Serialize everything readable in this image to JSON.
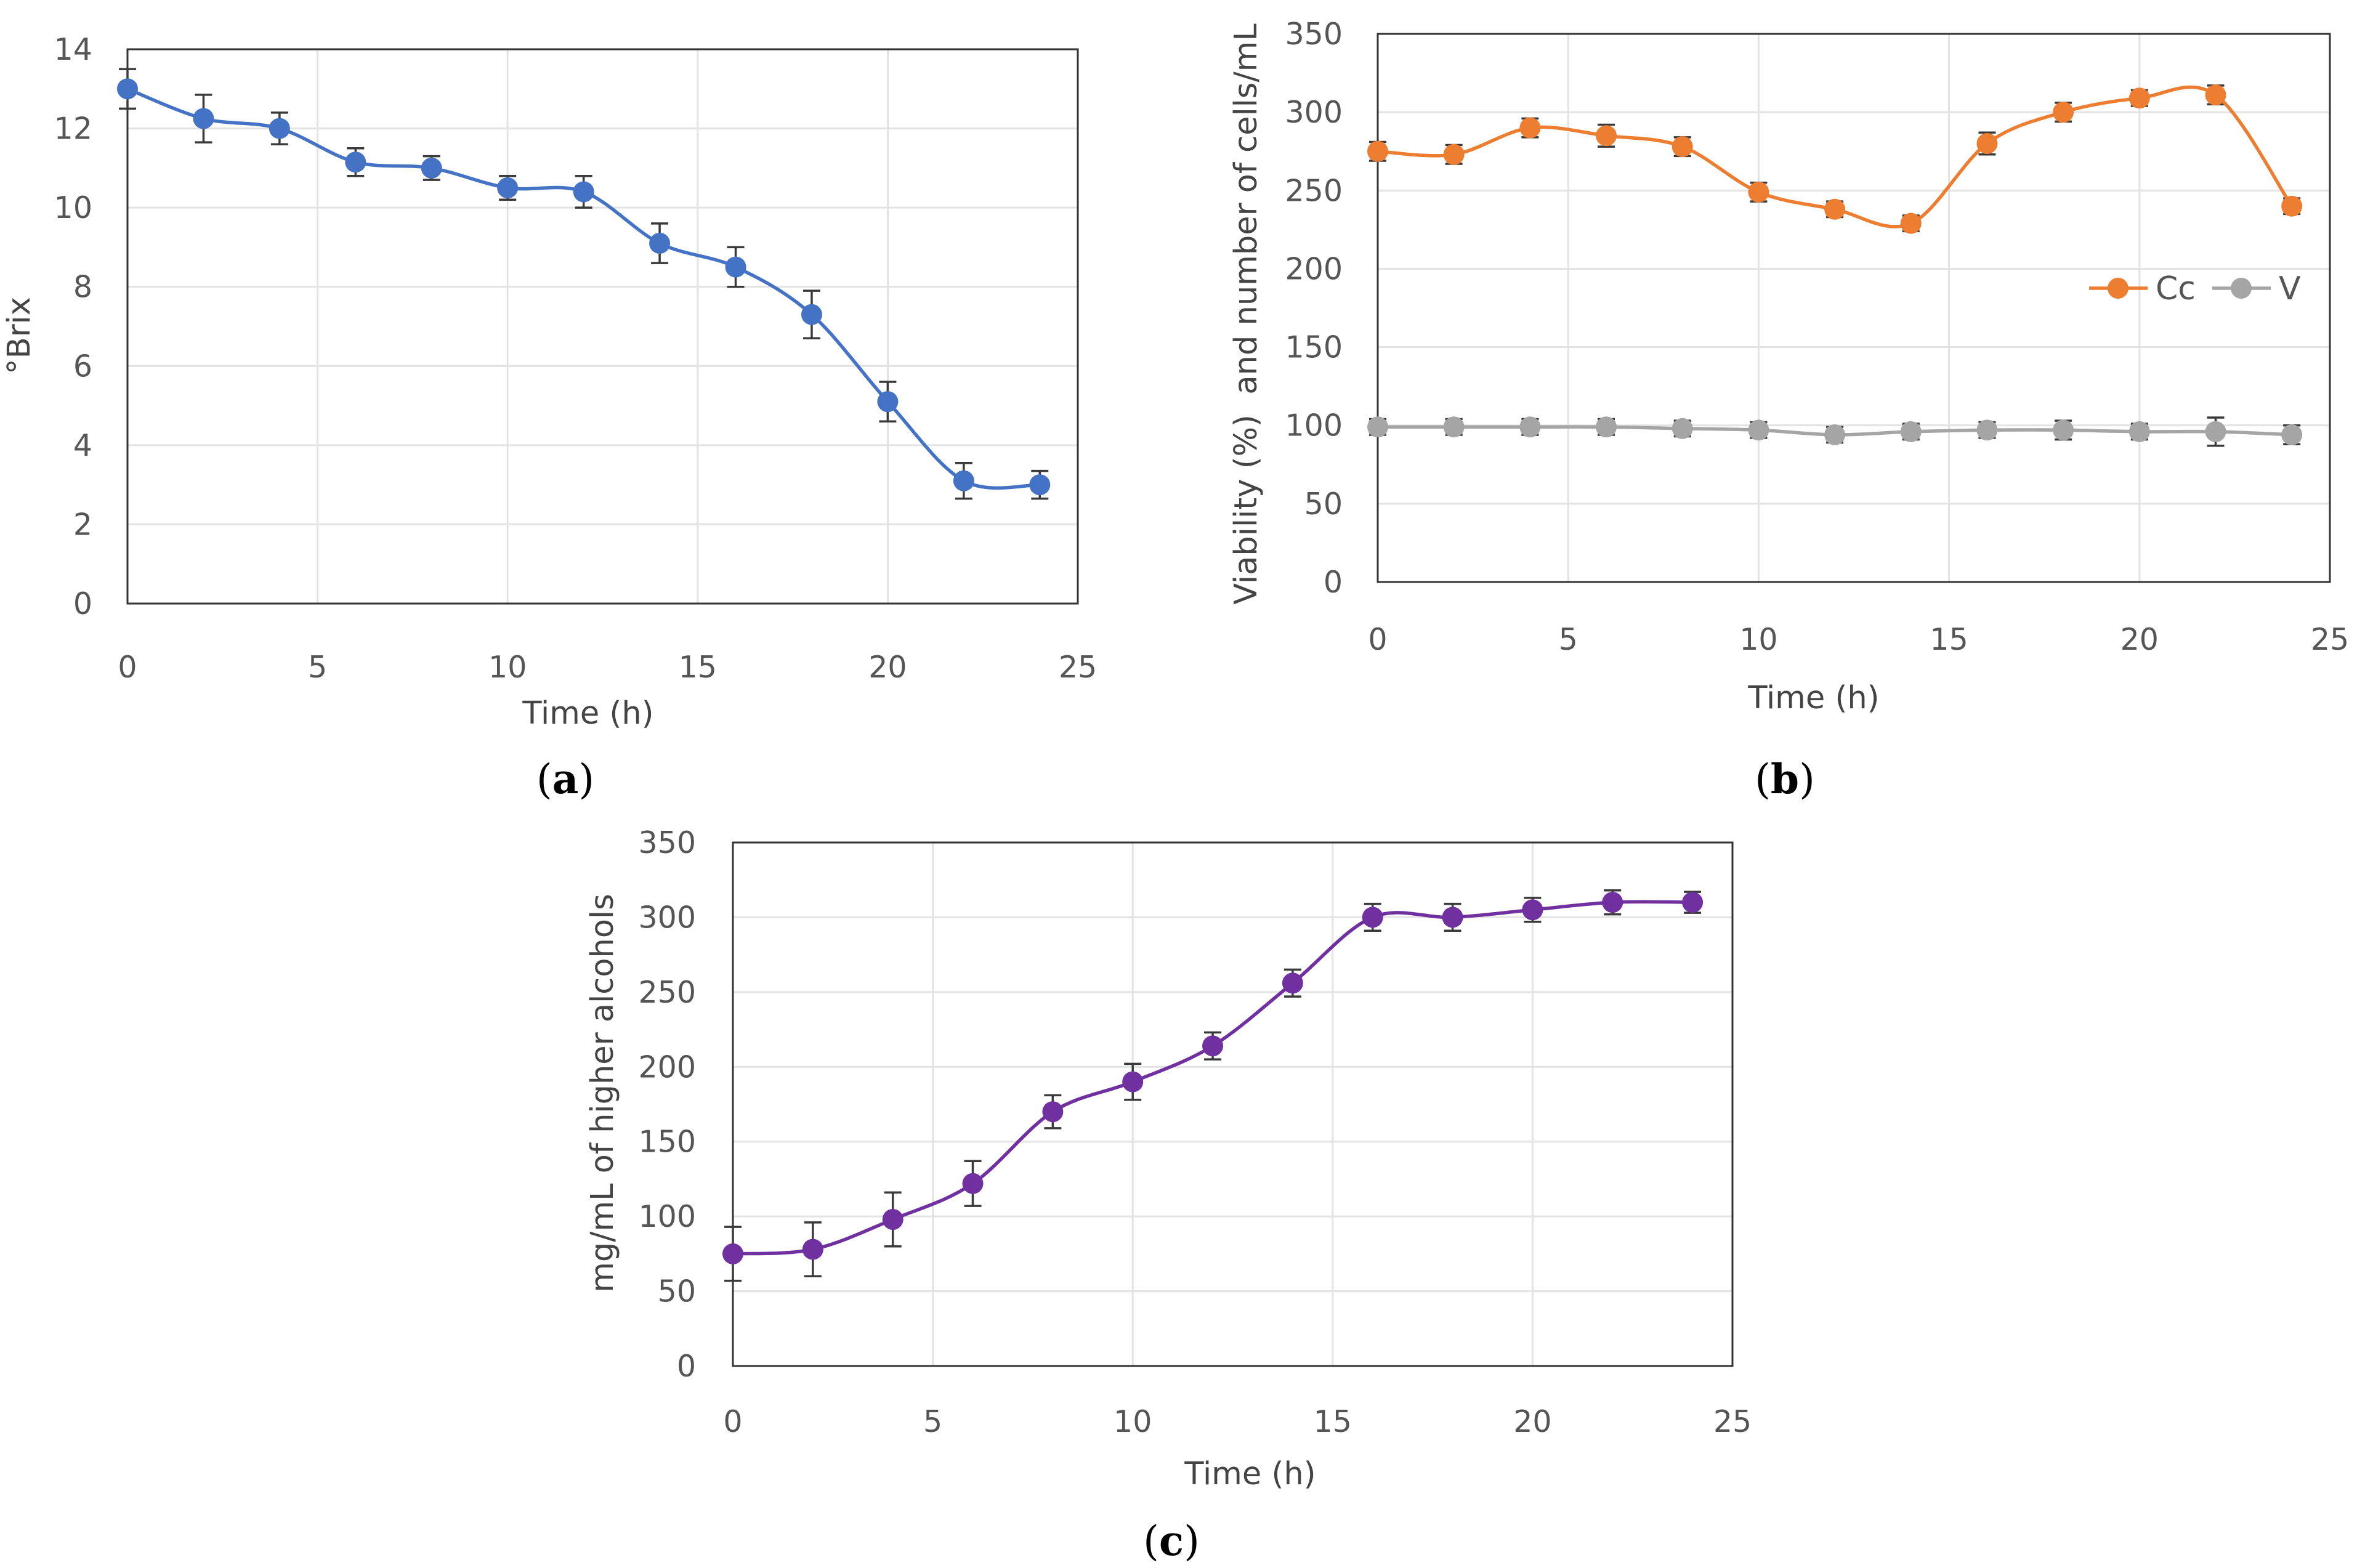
{
  "chart_data": [
    {
      "id": "a",
      "type": "line",
      "panel_label": "a",
      "xlabel": "Time (h)",
      "ylabel": "°Brix",
      "xlim": [
        0,
        25
      ],
      "ylim": [
        0,
        14
      ],
      "xticks": [
        0,
        5,
        10,
        15,
        20,
        25
      ],
      "yticks": [
        0,
        2,
        4,
        6,
        8,
        10,
        12,
        14
      ],
      "grid": true,
      "legend": null,
      "series": [
        {
          "name": "°Brix",
          "color": "#4472C4",
          "x": [
            0,
            2,
            4,
            6,
            8,
            10,
            12,
            14,
            16,
            18,
            20,
            22,
            24
          ],
          "y": [
            13.0,
            12.25,
            12.0,
            11.15,
            11.0,
            10.5,
            10.4,
            9.1,
            8.5,
            7.3,
            5.1,
            3.1,
            3.0
          ],
          "error": [
            0.5,
            0.6,
            0.4,
            0.35,
            0.3,
            0.3,
            0.4,
            0.5,
            0.5,
            0.6,
            0.5,
            0.45,
            0.35
          ]
        }
      ]
    },
    {
      "id": "b",
      "type": "line",
      "panel_label": "b",
      "xlabel": "Time (h)",
      "ylabel": "Viability (%)  and number of cells/mL",
      "xlim": [
        0,
        25
      ],
      "ylim": [
        0,
        350
      ],
      "xticks": [
        0,
        5,
        10,
        15,
        20,
        25
      ],
      "yticks": [
        0,
        50,
        100,
        150,
        200,
        250,
        300,
        350
      ],
      "grid": true,
      "legend": "right",
      "series": [
        {
          "name": "Cc",
          "color": "#ED7D31",
          "x": [
            0,
            2,
            4,
            6,
            8,
            10,
            12,
            14,
            16,
            18,
            20,
            22,
            24
          ],
          "y": [
            275,
            273,
            290,
            285,
            278,
            249,
            238,
            229,
            280,
            300,
            309,
            311,
            240
          ],
          "error": [
            6,
            6,
            6,
            7,
            6,
            6,
            5,
            5,
            7,
            6,
            5,
            6,
            5
          ]
        },
        {
          "name": "V",
          "color": "#A5A5A5",
          "x": [
            0,
            2,
            4,
            6,
            8,
            10,
            12,
            14,
            16,
            18,
            20,
            22,
            24
          ],
          "y": [
            99,
            99,
            99,
            99,
            98,
            97,
            94,
            96,
            97,
            97,
            96,
            96,
            94
          ],
          "error": [
            5,
            5,
            5,
            5,
            5,
            5,
            5,
            5,
            5,
            6,
            5,
            9,
            6
          ]
        }
      ]
    },
    {
      "id": "c",
      "type": "line",
      "panel_label": "c",
      "xlabel": "Time (h)",
      "ylabel": "mg/mL of higher alcohols",
      "xlim": [
        0,
        25
      ],
      "ylim": [
        0,
        350
      ],
      "xticks": [
        0,
        5,
        10,
        15,
        20,
        25
      ],
      "yticks": [
        0,
        50,
        100,
        150,
        200,
        250,
        300,
        350
      ],
      "grid": true,
      "legend": null,
      "series": [
        {
          "name": "higher alcohols",
          "color": "#7030A0",
          "x": [
            0,
            2,
            4,
            6,
            8,
            10,
            12,
            14,
            16,
            18,
            20,
            22,
            24
          ],
          "y": [
            75,
            78,
            98,
            122,
            170,
            190,
            214,
            256,
            300,
            300,
            305,
            310,
            310
          ],
          "error": [
            18,
            18,
            18,
            15,
            11,
            12,
            9,
            9,
            9,
            9,
            8,
            8,
            7
          ]
        }
      ]
    }
  ]
}
